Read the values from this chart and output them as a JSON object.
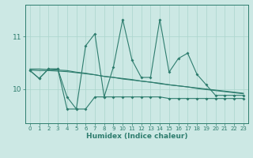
{
  "xlabel": "Humidex (Indice chaleur)",
  "background_color": "#cce8e4",
  "line_color": "#2e7d6e",
  "grid_color": "#aad4cc",
  "x": [
    0,
    1,
    2,
    3,
    4,
    5,
    6,
    7,
    8,
    9,
    10,
    11,
    12,
    13,
    14,
    15,
    16,
    17,
    18,
    19,
    20,
    21,
    22,
    23
  ],
  "series1": [
    10.35,
    10.2,
    10.38,
    10.38,
    9.85,
    9.62,
    10.82,
    11.05,
    9.85,
    10.42,
    11.32,
    10.55,
    10.22,
    10.22,
    11.32,
    10.32,
    10.58,
    10.68,
    10.28,
    10.08,
    9.88,
    9.88,
    9.88,
    9.88
  ],
  "series_trend_upper": [
    10.38,
    10.38,
    10.37,
    10.36,
    10.35,
    10.32,
    10.3,
    10.27,
    10.24,
    10.22,
    10.2,
    10.18,
    10.15,
    10.13,
    10.11,
    10.08,
    10.06,
    10.04,
    10.02,
    10.0,
    9.98,
    9.96,
    9.94,
    9.92
  ],
  "series_trend_middle": [
    10.36,
    10.35,
    10.35,
    10.34,
    10.33,
    10.31,
    10.29,
    10.27,
    10.24,
    10.22,
    10.19,
    10.17,
    10.15,
    10.13,
    10.1,
    10.08,
    10.06,
    10.04,
    10.01,
    9.99,
    9.97,
    9.95,
    9.93,
    9.91
  ],
  "series_low": [
    10.35,
    10.2,
    10.38,
    10.38,
    9.62,
    9.62,
    9.62,
    9.85,
    9.85,
    9.85,
    9.85,
    9.85,
    9.85,
    9.85,
    9.85,
    9.82,
    9.82,
    9.82,
    9.82,
    9.82,
    9.82,
    9.82,
    9.82,
    9.82
  ],
  "ylim_min": 9.35,
  "ylim_max": 11.6,
  "yticks": [
    10,
    11
  ],
  "xticks": [
    0,
    1,
    2,
    3,
    4,
    5,
    6,
    7,
    8,
    9,
    10,
    11,
    12,
    13,
    14,
    15,
    16,
    17,
    18,
    19,
    20,
    21,
    22,
    23
  ]
}
